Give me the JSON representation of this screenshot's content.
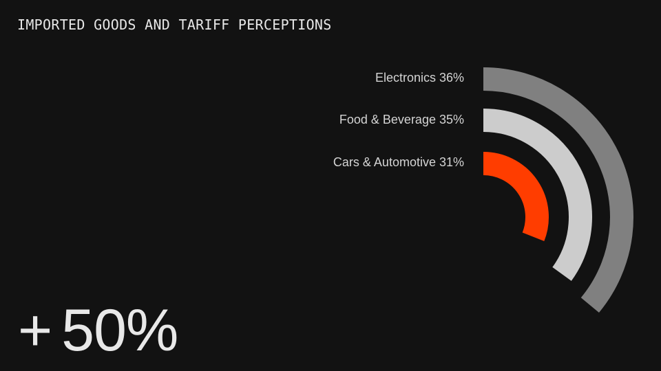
{
  "title": "IMPORTED GOODS AND TARIFF PERCEPTIONS",
  "headline": {
    "sign": "+",
    "value": "50%"
  },
  "labels": [
    "Electronics 36%",
    "Food & Beverage 35%",
    "Cars & Automotive 31%"
  ],
  "colors": {
    "background": "#121212",
    "electronics": "#808080",
    "food_beverage": "#cccccc",
    "cars_automotive": "#ff3d00",
    "text": "#e6e6e6"
  },
  "chart_data": {
    "type": "radial-bar",
    "title": "IMPORTED GOODS AND TARIFF PERCEPTIONS",
    "categories": [
      "Electronics",
      "Food & Beverage",
      "Cars & Automotive"
    ],
    "values": [
      36,
      35,
      31
    ],
    "unit": "%",
    "colors": [
      "#808080",
      "#cccccc",
      "#ff3d00"
    ],
    "annotation": "+ 50%",
    "full_scale": 100,
    "grid": false,
    "legend": "inline labels left of arcs"
  }
}
